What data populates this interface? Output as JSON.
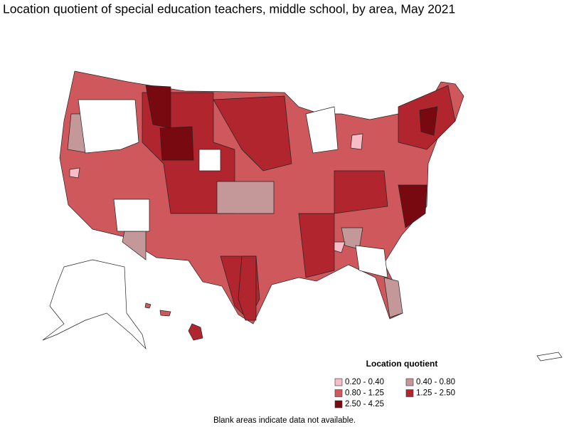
{
  "title": "Location quotient of special education teachers, middle school, by area, May 2021",
  "legend": {
    "title": "Location quotient",
    "items": [
      {
        "label": "0.20 - 0.40",
        "color": "#f7bcc6"
      },
      {
        "label": "0.40 - 0.80",
        "color": "#c49799"
      },
      {
        "label": "0.80 - 1.25",
        "color": "#cf585c"
      },
      {
        "label": "1.25 - 2.50",
        "color": "#b0252e"
      },
      {
        "label": "2.50 - 4.25",
        "color": "#780910"
      }
    ]
  },
  "note": "Blank areas indicate data not available."
}
